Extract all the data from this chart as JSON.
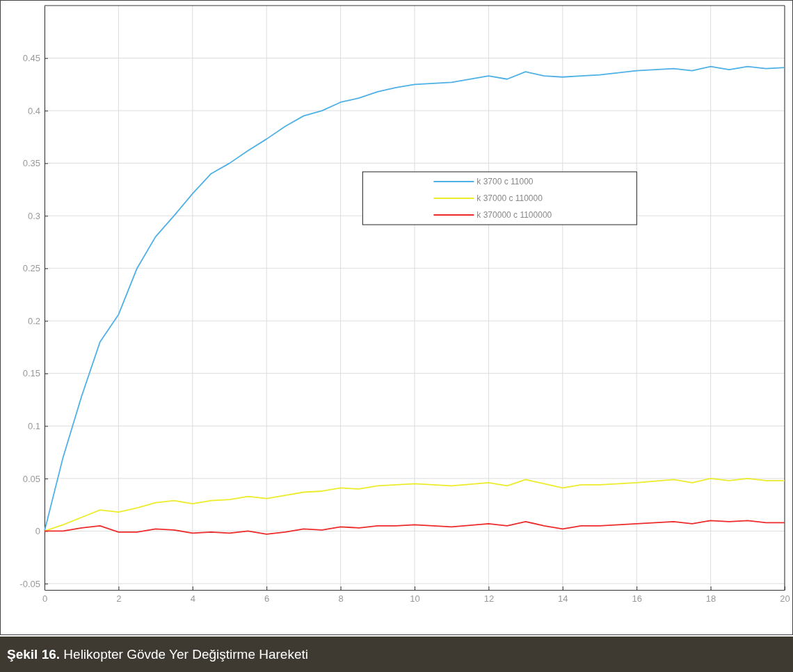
{
  "chart_data": {
    "type": "line",
    "xlim": [
      0,
      20
    ],
    "xticks": [
      0,
      2,
      4,
      6,
      8,
      10,
      12,
      14,
      16,
      18,
      20
    ],
    "ylim": [
      -0.056,
      0.5
    ],
    "yticks": [
      -0.05,
      0,
      0.05,
      0.1,
      0.15,
      0.2,
      0.25,
      0.3,
      0.35,
      0.4,
      0.45
    ],
    "grid": true,
    "legend": "top",
    "line_style": "solid",
    "marker": "none",
    "annotations": [
      "Şekil 16. Helikopter Gövde Yer Değiştirme Hareketi"
    ],
    "x": [
      0,
      0.5,
      1,
      1.5,
      2,
      2.5,
      3,
      3.5,
      4,
      4.5,
      5,
      5.5,
      6,
      6.5,
      7,
      7.5,
      8,
      8.5,
      9,
      9.5,
      10,
      11,
      12,
      12.5,
      13,
      13.5,
      14,
      14.5,
      15,
      16,
      17,
      17.5,
      18,
      18.5,
      19,
      19.5,
      20
    ],
    "series": [
      {
        "name": "k 3700 c 11000",
        "color": "#4db0e6",
        "values": [
          0,
          0.07,
          0.128,
          0.18,
          0.206,
          0.25,
          0.28,
          0.3,
          0.321,
          0.34,
          0.35,
          0.362,
          0.373,
          0.385,
          0.395,
          0.4,
          0.408,
          0.412,
          0.418,
          0.422,
          0.425,
          0.427,
          0.433,
          0.43,
          0.437,
          0.433,
          0.432,
          0.433,
          0.434,
          0.438,
          0.44,
          0.438,
          0.442,
          0.439,
          0.442,
          0.44,
          0.441
        ]
      },
      {
        "name": "k 37000 c 110000",
        "color": "#ecec2a",
        "values": [
          0,
          0.006,
          0.013,
          0.02,
          0.018,
          0.022,
          0.027,
          0.029,
          0.026,
          0.029,
          0.03,
          0.033,
          0.031,
          0.034,
          0.037,
          0.038,
          0.041,
          0.04,
          0.043,
          0.044,
          0.045,
          0.043,
          0.046,
          0.043,
          0.049,
          0.045,
          0.041,
          0.044,
          0.044,
          0.046,
          0.049,
          0.046,
          0.05,
          0.048,
          0.05,
          0.048,
          0.048
        ]
      },
      {
        "name": "k 370000 c 1100000",
        "color": "#ee2a2a",
        "values": [
          0,
          0,
          0.003,
          0.005,
          -0.001,
          -0.001,
          0.002,
          0.001,
          -0.002,
          -0.001,
          -0.002,
          0,
          -0.003,
          -0.001,
          0.002,
          0.001,
          0.004,
          0.003,
          0.005,
          0.005,
          0.006,
          0.004,
          0.007,
          0.005,
          0.009,
          0.005,
          0.002,
          0.005,
          0.005,
          0.007,
          0.009,
          0.007,
          0.01,
          0.009,
          0.01,
          0.008,
          0.008
        ]
      }
    ]
  }
}
